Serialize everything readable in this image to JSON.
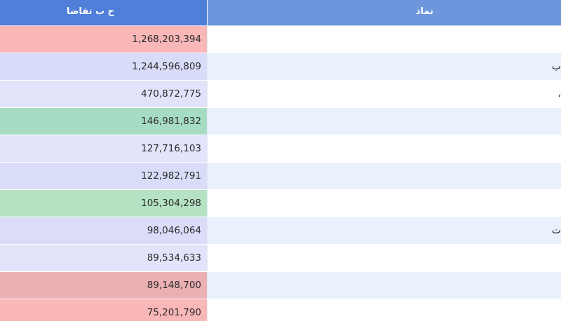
{
  "header": {
    "demand_label": "ح ب تقاضا",
    "symbol_label": "نماد"
  },
  "rows": [
    {
      "demand": "1,268,203,394",
      "symbol": "",
      "color": "#f9b7b8"
    },
    {
      "demand": "1,244,596,809",
      "symbol": "ب",
      "color": "#d9dcf8"
    },
    {
      "demand": "470,872,775",
      "symbol": "،",
      "color": "#e2e2fa"
    },
    {
      "demand": "146,981,832",
      "symbol": "",
      "color": "#a7dcc4"
    },
    {
      "demand": "127,716,103",
      "symbol": "",
      "color": "#e3e3fb"
    },
    {
      "demand": "122,982,791",
      "symbol": "",
      "color": "#d9ddf8"
    },
    {
      "demand": "105,304,298",
      "symbol": "",
      "color": "#b4e2c3"
    },
    {
      "demand": "98,046,064",
      "symbol": "ت",
      "color": "#dadcf8"
    },
    {
      "demand": "89,534,633",
      "symbol": "",
      "color": "#e3e3fb"
    },
    {
      "demand": "89,148,700",
      "symbol": "",
      "color": "#ebb0b4"
    },
    {
      "demand": "75,201,790",
      "symbol": "",
      "color": "#f9b7b8"
    }
  ]
}
